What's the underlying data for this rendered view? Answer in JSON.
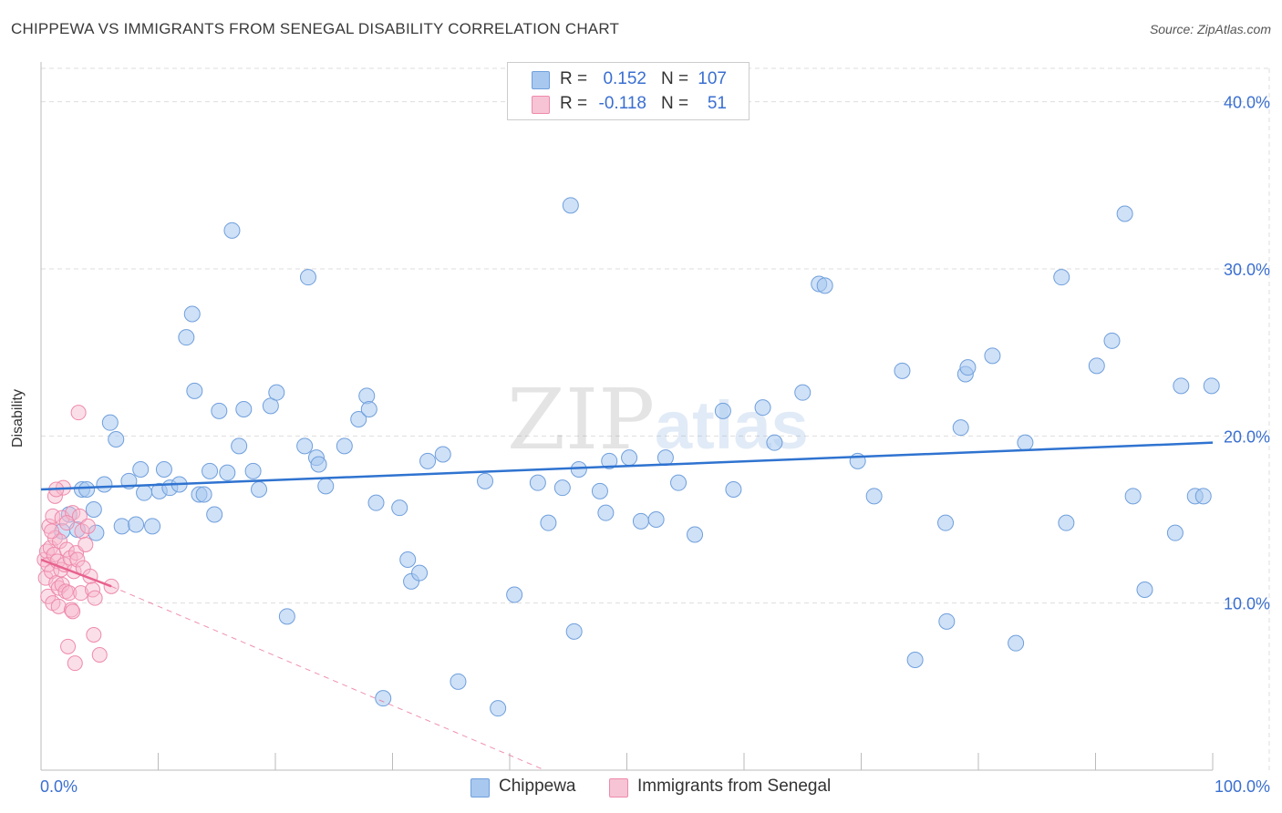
{
  "title": "CHIPPEWA VS IMMIGRANTS FROM SENEGAL DISABILITY CORRELATION CHART",
  "source": "Source: ZipAtlas.com",
  "watermark": {
    "zip": "ZIP",
    "atlas": "atlas"
  },
  "colors": {
    "blue_fill": "#a8c8f0",
    "blue_stroke": "#6f9fdc",
    "blue_line": "#2f73d0",
    "pink_fill": "#f6b8cb",
    "pink_stroke": "#ee8aab",
    "pink_line": "#e8628e",
    "axis_text": "#3a6fd0",
    "grid": "#dddddd"
  },
  "legend": {
    "rows": [
      {
        "r_label": "R =",
        "r_value": "0.152",
        "n_label": "N =",
        "n_value": "107"
      },
      {
        "r_label": "R =",
        "r_value": "-0.118",
        "n_label": "N =",
        "n_value": "51"
      }
    ]
  },
  "bottom_legend": [
    "Chippewa",
    "Immigrants from Senegal"
  ],
  "chart_data": {
    "type": "scatter",
    "title": "CHIPPEWA VS IMMIGRANTS FROM SENEGAL DISABILITY CORRELATION CHART",
    "xlabel": "",
    "ylabel": "Disability",
    "xlim": [
      0,
      100
    ],
    "ylim": [
      0,
      42
    ],
    "x_tick_labels": [
      "0.0%",
      "100.0%"
    ],
    "y_ticks": [
      10,
      20,
      30,
      40
    ],
    "y_tick_labels": [
      "10.0%",
      "20.0%",
      "30.0%",
      "40.0%"
    ],
    "grid": true,
    "series": [
      {
        "name": "Chippewa",
        "R": 0.152,
        "N": 107,
        "trend": {
          "x": [
            0,
            100
          ],
          "y": [
            16.8,
            19.6
          ],
          "style": "solid"
        },
        "points": [
          [
            1.8,
            14.3
          ],
          [
            2.4,
            15.3
          ],
          [
            3.1,
            14.4
          ],
          [
            3.5,
            16.8
          ],
          [
            3.9,
            16.8
          ],
          [
            4.5,
            15.6
          ],
          [
            4.7,
            14.2
          ],
          [
            5.4,
            17.1
          ],
          [
            5.9,
            20.8
          ],
          [
            6.4,
            19.8
          ],
          [
            6.9,
            14.6
          ],
          [
            7.5,
            17.3
          ],
          [
            8.1,
            14.7
          ],
          [
            8.5,
            18.0
          ],
          [
            8.8,
            16.6
          ],
          [
            9.5,
            14.6
          ],
          [
            10.1,
            16.7
          ],
          [
            10.5,
            18.0
          ],
          [
            11.0,
            16.9
          ],
          [
            11.8,
            17.1
          ],
          [
            12.4,
            25.9
          ],
          [
            12.9,
            27.3
          ],
          [
            13.1,
            22.7
          ],
          [
            13.5,
            16.5
          ],
          [
            13.9,
            16.5
          ],
          [
            14.4,
            17.9
          ],
          [
            14.8,
            15.3
          ],
          [
            15.2,
            21.5
          ],
          [
            15.9,
            17.8
          ],
          [
            16.3,
            32.3
          ],
          [
            16.9,
            19.4
          ],
          [
            17.3,
            21.6
          ],
          [
            18.1,
            17.9
          ],
          [
            18.6,
            16.8
          ],
          [
            19.6,
            21.8
          ],
          [
            20.1,
            22.6
          ],
          [
            21.0,
            9.2
          ],
          [
            22.5,
            19.4
          ],
          [
            22.8,
            29.5
          ],
          [
            23.5,
            18.7
          ],
          [
            23.7,
            18.3
          ],
          [
            24.3,
            17.0
          ],
          [
            25.9,
            19.4
          ],
          [
            27.1,
            21.0
          ],
          [
            27.8,
            22.4
          ],
          [
            28.0,
            21.6
          ],
          [
            28.6,
            16.0
          ],
          [
            29.2,
            4.3
          ],
          [
            30.6,
            15.7
          ],
          [
            31.3,
            12.6
          ],
          [
            31.6,
            11.3
          ],
          [
            32.3,
            11.8
          ],
          [
            33.0,
            18.5
          ],
          [
            34.3,
            18.9
          ],
          [
            35.6,
            5.3
          ],
          [
            37.9,
            17.3
          ],
          [
            39.0,
            3.7
          ],
          [
            40.4,
            10.5
          ],
          [
            42.4,
            17.2
          ],
          [
            43.3,
            14.8
          ],
          [
            44.5,
            16.9
          ],
          [
            45.2,
            33.8
          ],
          [
            45.5,
            8.3
          ],
          [
            45.9,
            18.0
          ],
          [
            47.7,
            16.7
          ],
          [
            48.2,
            15.4
          ],
          [
            48.5,
            18.5
          ],
          [
            50.2,
            18.7
          ],
          [
            51.2,
            14.9
          ],
          [
            52.5,
            15.0
          ],
          [
            53.3,
            18.7
          ],
          [
            54.4,
            17.2
          ],
          [
            55.8,
            14.1
          ],
          [
            58.2,
            21.5
          ],
          [
            59.1,
            16.8
          ],
          [
            61.6,
            21.7
          ],
          [
            62.6,
            19.6
          ],
          [
            65.0,
            22.6
          ],
          [
            66.4,
            29.1
          ],
          [
            66.9,
            29.0
          ],
          [
            69.7,
            18.5
          ],
          [
            71.1,
            16.4
          ],
          [
            73.5,
            23.9
          ],
          [
            74.6,
            6.6
          ],
          [
            77.2,
            14.8
          ],
          [
            77.3,
            8.9
          ],
          [
            78.5,
            20.5
          ],
          [
            78.9,
            23.7
          ],
          [
            79.1,
            24.1
          ],
          [
            81.2,
            24.8
          ],
          [
            83.2,
            7.6
          ],
          [
            84.0,
            19.6
          ],
          [
            87.1,
            29.5
          ],
          [
            87.5,
            14.8
          ],
          [
            90.1,
            24.2
          ],
          [
            91.4,
            25.7
          ],
          [
            92.5,
            33.3
          ],
          [
            93.2,
            16.4
          ],
          [
            94.2,
            10.8
          ],
          [
            96.8,
            14.2
          ],
          [
            97.3,
            23.0
          ],
          [
            98.5,
            16.4
          ],
          [
            99.2,
            16.4
          ],
          [
            99.9,
            23.0
          ]
        ]
      },
      {
        "name": "Immigrants from Senegal",
        "R": -0.118,
        "N": 51,
        "trend": {
          "x": [
            0,
            6.0
          ],
          "y": [
            12.6,
            11.0
          ],
          "style": "solid"
        },
        "trend_extension": {
          "x": [
            6.0,
            43.0
          ],
          "y": [
            11.0,
            0.0
          ],
          "style": "dashed"
        },
        "points": [
          [
            0.3,
            12.6
          ],
          [
            0.4,
            11.5
          ],
          [
            0.5,
            13.1
          ],
          [
            0.6,
            12.3
          ],
          [
            0.6,
            10.4
          ],
          [
            0.7,
            14.6
          ],
          [
            0.8,
            13.3
          ],
          [
            0.9,
            11.9
          ],
          [
            1.0,
            15.2
          ],
          [
            1.0,
            10.0
          ],
          [
            1.1,
            12.9
          ],
          [
            1.2,
            16.4
          ],
          [
            1.2,
            13.9
          ],
          [
            1.3,
            11.2
          ],
          [
            1.4,
            12.5
          ],
          [
            1.5,
            10.9
          ],
          [
            1.5,
            9.8
          ],
          [
            1.6,
            13.7
          ],
          [
            1.7,
            12.0
          ],
          [
            1.8,
            15.1
          ],
          [
            1.8,
            11.1
          ],
          [
            1.9,
            16.9
          ],
          [
            2.0,
            12.3
          ],
          [
            2.1,
            10.7
          ],
          [
            2.2,
            13.2
          ],
          [
            2.3,
            7.4
          ],
          [
            2.4,
            10.6
          ],
          [
            2.5,
            12.7
          ],
          [
            2.6,
            9.6
          ],
          [
            2.7,
            15.4
          ],
          [
            2.8,
            11.9
          ],
          [
            2.9,
            6.4
          ],
          [
            3.0,
            13.0
          ],
          [
            3.1,
            12.6
          ],
          [
            3.2,
            21.4
          ],
          [
            3.3,
            15.2
          ],
          [
            3.4,
            10.6
          ],
          [
            3.5,
            14.3
          ],
          [
            3.6,
            12.1
          ],
          [
            3.8,
            13.5
          ],
          [
            4.0,
            14.6
          ],
          [
            4.2,
            11.6
          ],
          [
            4.4,
            10.8
          ],
          [
            4.5,
            8.1
          ],
          [
            4.6,
            10.3
          ],
          [
            5.0,
            6.9
          ],
          [
            1.3,
            16.8
          ],
          [
            0.9,
            14.3
          ],
          [
            2.2,
            14.8
          ],
          [
            6.0,
            11.0
          ],
          [
            2.7,
            9.5
          ]
        ]
      }
    ]
  }
}
